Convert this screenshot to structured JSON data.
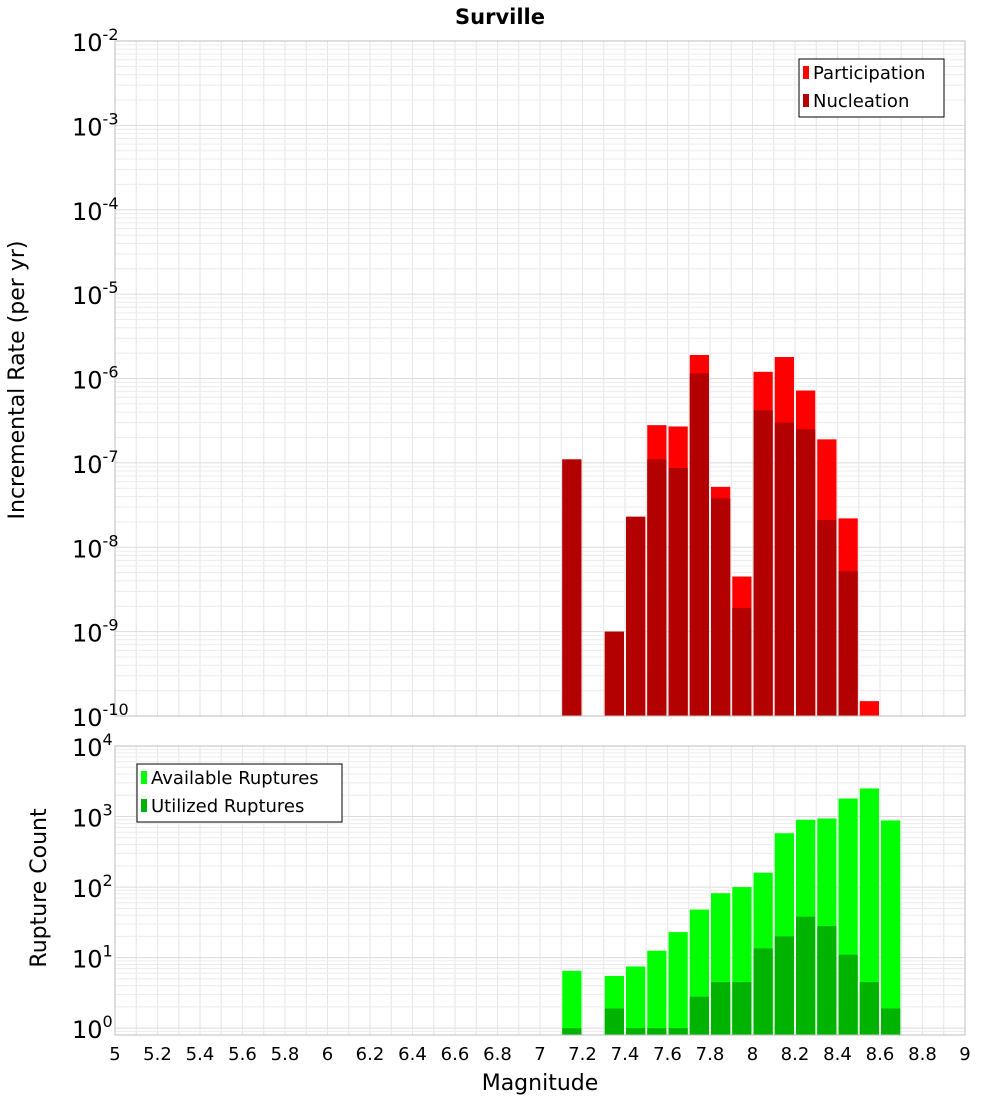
{
  "chart_data": [
    {
      "type": "bar",
      "title": "Surville",
      "xlabel": "",
      "ylabel": "Incremental Rate (per yr)",
      "yscale": "log",
      "ylim": [
        1e-10,
        0.01
      ],
      "xlim": [
        5,
        9
      ],
      "y_tick_exponents": [
        "-10",
        "-9",
        "-8",
        "-7",
        "-6",
        "-5",
        "-4",
        "-3",
        "-2"
      ],
      "y_tick_base": "10",
      "grid": true,
      "legend_position": "top-right",
      "x": [
        7.15,
        7.25,
        7.35,
        7.45,
        7.55,
        7.65,
        7.75,
        7.85,
        7.95,
        8.05,
        8.15,
        8.25,
        8.35,
        8.45,
        8.55
      ],
      "series": [
        {
          "name": "Participation",
          "color": "#ff0000",
          "values": [
            1.1e-07,
            null,
            1e-09,
            2.3e-08,
            2.8e-07,
            2.7e-07,
            1.9e-06,
            5.2e-08,
            4.5e-09,
            1.2e-06,
            1.8e-06,
            7.2e-07,
            1.9e-07,
            2.2e-08,
            1.5e-10
          ]
        },
        {
          "name": "Nucleation",
          "color": "#b30000",
          "values": [
            1.1e-07,
            null,
            1e-09,
            2.3e-08,
            1.1e-07,
            8.7e-08,
            1.15e-06,
            3.8e-08,
            1.9e-09,
            4.2e-07,
            3e-07,
            2.5e-07,
            2.1e-08,
            5.2e-09,
            null
          ]
        }
      ]
    },
    {
      "type": "bar",
      "title": "",
      "xlabel": "Magnitude",
      "ylabel": "Rupture Count",
      "yscale": "log",
      "ylim": [
        0.8,
        10000
      ],
      "xlim": [
        5,
        9
      ],
      "x_ticks": [
        "5",
        "5.2",
        "5.4",
        "5.6",
        "5.8",
        "6",
        "6.2",
        "6.4",
        "6.6",
        "6.8",
        "7",
        "7.2",
        "7.4",
        "7.6",
        "7.8",
        "8",
        "8.2",
        "8.4",
        "8.6",
        "8.8",
        "9"
      ],
      "y_tick_exponents": [
        "0",
        "1",
        "2",
        "3",
        "4"
      ],
      "y_tick_base": "10",
      "grid": true,
      "legend_position": "top-left",
      "x": [
        7.15,
        7.25,
        7.35,
        7.45,
        7.55,
        7.65,
        7.75,
        7.85,
        7.95,
        8.05,
        8.15,
        8.25,
        8.35,
        8.45,
        8.55,
        8.65
      ],
      "series": [
        {
          "name": "Available Ruptures",
          "color": "#00ff00",
          "values": [
            6.5,
            null,
            5.5,
            7.5,
            12.5,
            23,
            48,
            82,
            100,
            160,
            580,
            900,
            940,
            1800,
            2500,
            880
          ]
        },
        {
          "name": "Utilized Ruptures",
          "color": "#00b300",
          "values": [
            1,
            null,
            1.9,
            1,
            1,
            1,
            2.8,
            4.5,
            4.5,
            13.5,
            20,
            38,
            28,
            11,
            4.5,
            1.9
          ]
        }
      ]
    }
  ]
}
